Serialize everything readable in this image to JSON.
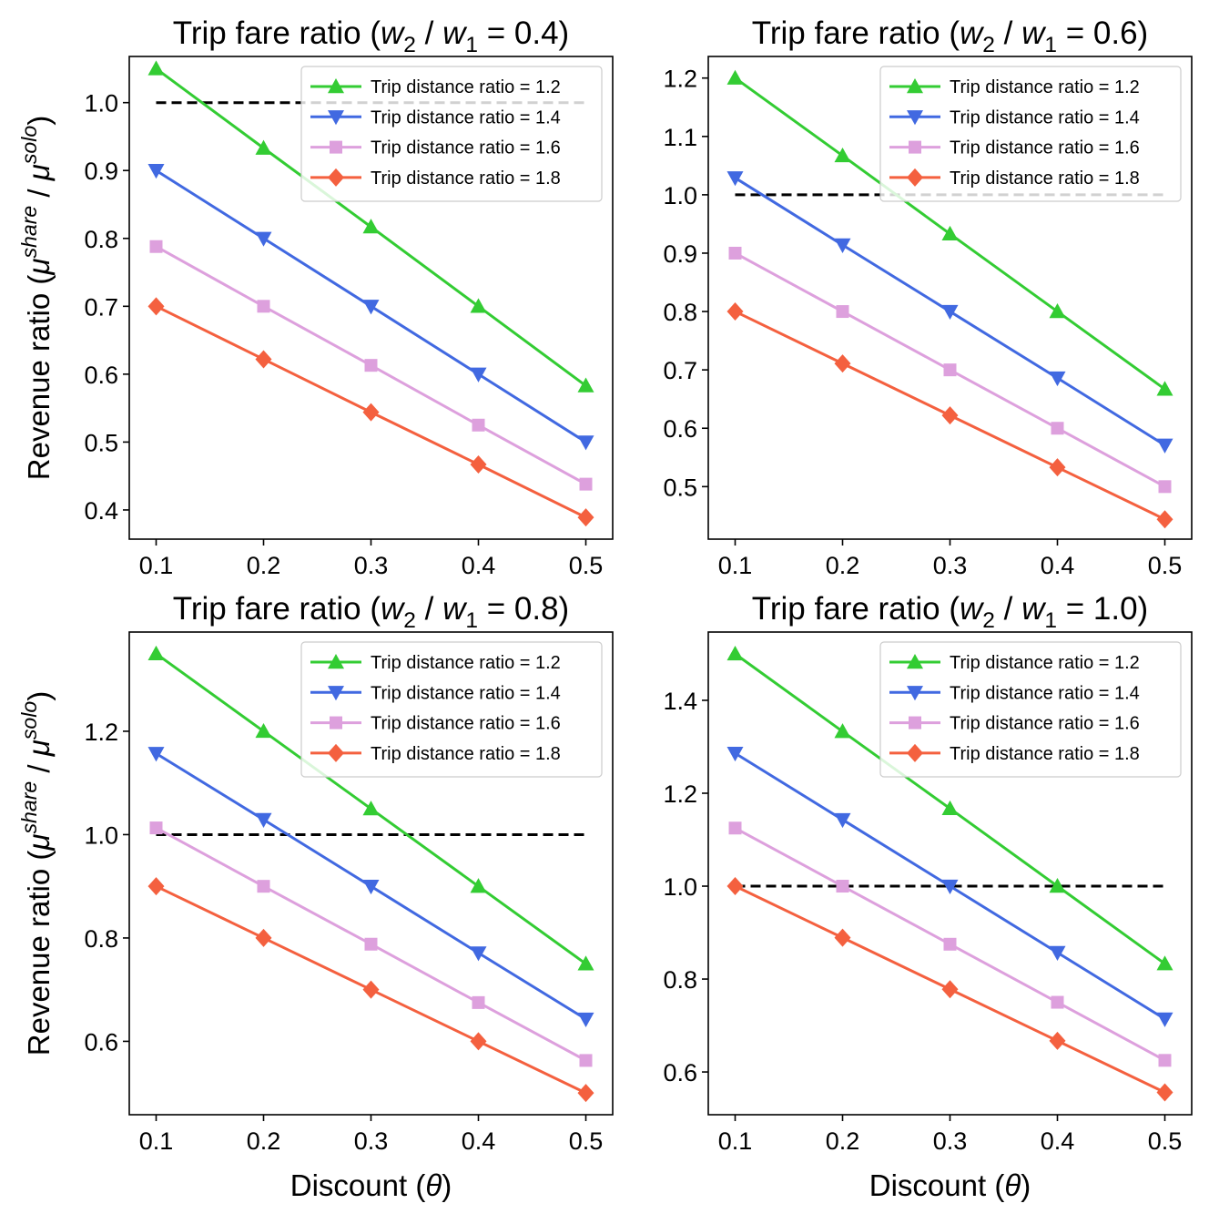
{
  "figure": {
    "xlabel": "Discount (θ)",
    "ylabel": "Revenue ratio (μshare / μsolo)"
  },
  "colors": {
    "series": [
      "#33cc33",
      "#4169e1",
      "#dda0dd",
      "#f4603f"
    ],
    "reference": "#000000"
  },
  "chart_data": [
    {
      "type": "line",
      "title": "Trip fare ratio (w2 / w1 = 0.4)",
      "x": [
        0.1,
        0.2,
        0.3,
        0.4,
        0.5
      ],
      "xlim": [
        0.075,
        0.525
      ],
      "ylim": [
        0.357,
        1.068
      ],
      "yticks": [
        0.4,
        0.5,
        0.6,
        0.7,
        0.8,
        0.9,
        1.0
      ],
      "reference_line": 1.0,
      "legend": "top-right",
      "series": [
        {
          "name": "Trip distance ratio = 1.2",
          "marker": "triangle-up",
          "values": [
            1.05,
            0.933,
            0.817,
            0.7,
            0.583
          ]
        },
        {
          "name": "Trip distance ratio = 1.4",
          "marker": "triangle-down",
          "values": [
            0.9,
            0.8,
            0.7,
            0.6,
            0.5
          ]
        },
        {
          "name": "Trip distance ratio = 1.6",
          "marker": "square",
          "values": [
            0.788,
            0.7,
            0.613,
            0.525,
            0.438
          ]
        },
        {
          "name": "Trip distance ratio = 1.8",
          "marker": "diamond",
          "values": [
            0.7,
            0.622,
            0.544,
            0.467,
            0.389
          ]
        }
      ]
    },
    {
      "type": "line",
      "title": "Trip fare ratio (w2 / w1 = 0.6)",
      "x": [
        0.1,
        0.2,
        0.3,
        0.4,
        0.5
      ],
      "xlim": [
        0.075,
        0.525
      ],
      "ylim": [
        0.41,
        1.237
      ],
      "yticks": [
        0.5,
        0.6,
        0.7,
        0.8,
        0.9,
        1.0,
        1.1,
        1.2
      ],
      "reference_line": 1.0,
      "legend": "top-right",
      "series": [
        {
          "name": "Trip distance ratio = 1.2",
          "marker": "triangle-up",
          "values": [
            1.2,
            1.067,
            0.933,
            0.8,
            0.667
          ]
        },
        {
          "name": "Trip distance ratio = 1.4",
          "marker": "triangle-down",
          "values": [
            1.029,
            0.914,
            0.8,
            0.686,
            0.571
          ]
        },
        {
          "name": "Trip distance ratio = 1.6",
          "marker": "square",
          "values": [
            0.9,
            0.8,
            0.7,
            0.6,
            0.5
          ]
        },
        {
          "name": "Trip distance ratio = 1.8",
          "marker": "diamond",
          "values": [
            0.8,
            0.711,
            0.622,
            0.533,
            0.444
          ]
        }
      ]
    },
    {
      "type": "line",
      "title": "Trip fare ratio (w2 / w1 = 0.8)",
      "x": [
        0.1,
        0.2,
        0.3,
        0.4,
        0.5
      ],
      "xlim": [
        0.075,
        0.525
      ],
      "ylim": [
        0.458,
        1.392
      ],
      "yticks": [
        0.6,
        0.8,
        1.0,
        1.2
      ],
      "reference_line": 1.0,
      "legend": "top-right",
      "series": [
        {
          "name": "Trip distance ratio = 1.2",
          "marker": "triangle-up",
          "values": [
            1.35,
            1.2,
            1.05,
            0.9,
            0.75
          ]
        },
        {
          "name": "Trip distance ratio = 1.4",
          "marker": "triangle-down",
          "values": [
            1.157,
            1.029,
            0.9,
            0.771,
            0.643
          ]
        },
        {
          "name": "Trip distance ratio = 1.6",
          "marker": "square",
          "values": [
            1.013,
            0.9,
            0.788,
            0.675,
            0.563
          ]
        },
        {
          "name": "Trip distance ratio = 1.8",
          "marker": "diamond",
          "values": [
            0.9,
            0.8,
            0.7,
            0.6,
            0.5
          ]
        }
      ]
    },
    {
      "type": "line",
      "title": "Trip fare ratio (w2 / w1 = 1.0)",
      "x": [
        0.1,
        0.2,
        0.3,
        0.4,
        0.5
      ],
      "xlim": [
        0.075,
        0.525
      ],
      "ylim": [
        0.508,
        1.547
      ],
      "yticks": [
        0.6,
        0.8,
        1.0,
        1.2,
        1.4
      ],
      "reference_line": 1.0,
      "legend": "top-right",
      "series": [
        {
          "name": "Trip distance ratio = 1.2",
          "marker": "triangle-up",
          "values": [
            1.5,
            1.333,
            1.167,
            1.0,
            0.833
          ]
        },
        {
          "name": "Trip distance ratio = 1.4",
          "marker": "triangle-down",
          "values": [
            1.286,
            1.143,
            1.0,
            0.857,
            0.714
          ]
        },
        {
          "name": "Trip distance ratio = 1.6",
          "marker": "square",
          "values": [
            1.125,
            1.0,
            0.875,
            0.75,
            0.625
          ]
        },
        {
          "name": "Trip distance ratio = 1.8",
          "marker": "diamond",
          "values": [
            1.0,
            0.889,
            0.778,
            0.667,
            0.556
          ]
        }
      ]
    }
  ]
}
